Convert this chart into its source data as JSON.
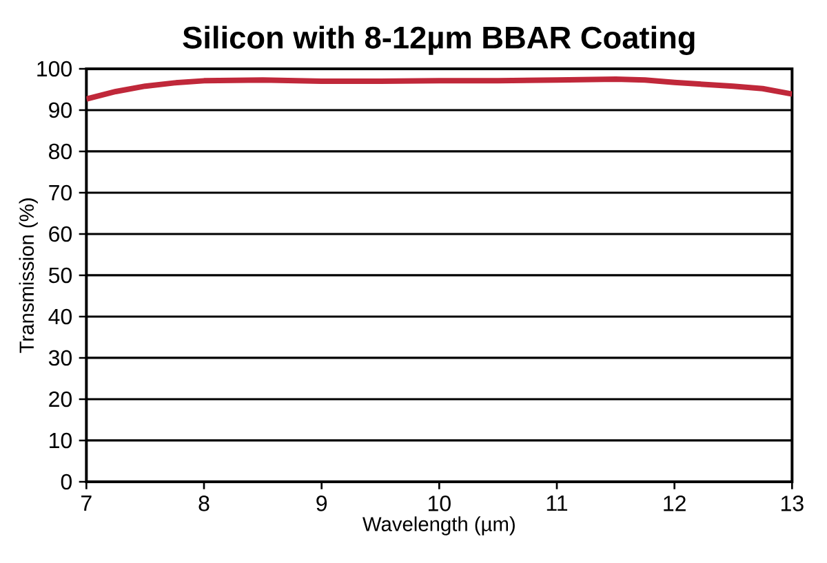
{
  "chart_data": {
    "type": "line",
    "title": "Silicon with 8-12µm BBAR Coating",
    "xlabel": "Wavelength (µm)",
    "ylabel": "Transmission (%)",
    "x": [
      7,
      7.25,
      7.5,
      7.75,
      8,
      8.5,
      9,
      9.5,
      10,
      10.5,
      11,
      11.5,
      11.75,
      12,
      12.5,
      12.75,
      13
    ],
    "series": [
      {
        "color": "#c0283a",
        "values": [
          92.7,
          94.5,
          95.8,
          96.6,
          97.1,
          97.3,
          97.0,
          97.0,
          97.1,
          97.1,
          97.3,
          97.5,
          97.3,
          96.7,
          95.8,
          95.2,
          93.9
        ]
      }
    ],
    "xlim": [
      7,
      13
    ],
    "ylim": [
      0,
      100
    ],
    "xticks": [
      7,
      8,
      9,
      10,
      11,
      12,
      13
    ],
    "yticks": [
      0,
      10,
      20,
      30,
      40,
      50,
      60,
      70,
      80,
      90,
      100
    ],
    "grid": "y",
    "marker": "none",
    "line_style": "solid"
  }
}
